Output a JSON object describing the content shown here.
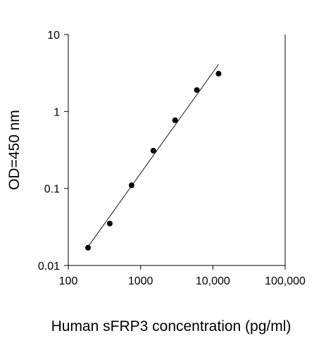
{
  "chart_data": {
    "type": "scatter",
    "title": "",
    "xlabel": "Human sFRP3 concentration (pg/ml)",
    "ylabel": "OD=450 nm",
    "x_scale": "log",
    "y_scale": "log",
    "xlim": [
      100,
      100000
    ],
    "ylim": [
      0.01,
      10
    ],
    "x_ticks": [
      100,
      1000,
      10000,
      100000
    ],
    "x_tick_labels": [
      "100",
      "1000",
      "10,000",
      "100,000"
    ],
    "y_ticks": [
      0.01,
      0.1,
      1,
      10
    ],
    "y_tick_labels": [
      "0.01",
      "0.1",
      "1",
      "10"
    ],
    "grid": false,
    "legend": "none",
    "series": [
      {
        "x": [
          187.5,
          375,
          750,
          1500,
          3000,
          6000,
          12000
        ],
        "y": [
          0.017,
          0.035,
          0.11,
          0.31,
          0.77,
          1.9,
          3.1
        ]
      }
    ],
    "fit_line": {
      "x": [
        187.5,
        12000
      ],
      "y": [
        0.0175,
        4.1
      ]
    },
    "colors": {
      "points": "#000000",
      "line": "#000000",
      "axis": "#000000"
    }
  }
}
